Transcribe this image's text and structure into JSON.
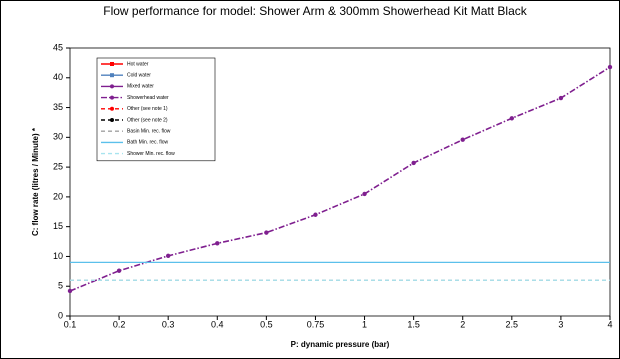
{
  "chart_data": {
    "type": "line",
    "title": "Flow performance for model: Shower Arm & 300mm Showerhead Kit Matt Black",
    "x_label": "P: dynamic pressure (bar)",
    "y_label": "C: flow rate (litres / Minute) *",
    "categories": [
      "0.1",
      "0.2",
      "0.3",
      "0.4",
      "0.5",
      "0.75",
      "1",
      "1.5",
      "2",
      "2.5",
      "3",
      "4"
    ],
    "ylim": [
      0,
      45
    ],
    "yticks": [
      0,
      5,
      10,
      15,
      20,
      25,
      30,
      35,
      40,
      45
    ],
    "grid": false,
    "legend": "top-left",
    "series": [
      {
        "name": "Hot water",
        "color": "#ff0000",
        "dash": "solid",
        "marker": "square",
        "values": [
          null,
          null,
          null,
          null,
          null,
          null,
          null,
          null,
          null,
          null,
          null,
          null
        ]
      },
      {
        "name": "Cold water",
        "color": "#4f81bd",
        "dash": "solid",
        "marker": "square",
        "values": [
          null,
          null,
          null,
          null,
          null,
          null,
          null,
          null,
          null,
          null,
          null,
          null
        ]
      },
      {
        "name": "Mixed water",
        "color": "#7f1f8f",
        "dash": "solid",
        "marker": "circle",
        "values": [
          null,
          null,
          null,
          null,
          null,
          null,
          null,
          null,
          null,
          null,
          null,
          null
        ]
      },
      {
        "name": "Showerhead water",
        "color": "#7f1f8f",
        "dash": "dashdot",
        "marker": "circle",
        "values": [
          4.2,
          7.6,
          10.1,
          12.2,
          14.0,
          17.0,
          20.5,
          25.7,
          29.6,
          33.2,
          36.6,
          41.8
        ]
      },
      {
        "name": "Other (see note 1)",
        "color": "#ff0000",
        "dash": "dashed",
        "marker": "circle",
        "values": [
          null,
          null,
          null,
          null,
          null,
          null,
          null,
          null,
          null,
          null,
          null,
          null
        ]
      },
      {
        "name": "Other (see note 2)",
        "color": "#000000",
        "dash": "dashed",
        "marker": "circle",
        "values": [
          null,
          null,
          null,
          null,
          null,
          null,
          null,
          null,
          null,
          null,
          null,
          null
        ]
      },
      {
        "name": "Basin Min. rec. flow",
        "color": "#a0a0a0",
        "dash": "dashed",
        "marker": "none",
        "values": [
          6,
          6,
          6,
          6,
          6,
          6,
          6,
          6,
          6,
          6,
          6,
          6
        ]
      },
      {
        "name": "Bath Min. rec. flow",
        "color": "#5bc0eb",
        "dash": "solid",
        "marker": "none",
        "values": [
          9,
          9,
          9,
          9,
          9,
          9,
          9,
          9,
          9,
          9,
          9,
          9
        ]
      },
      {
        "name": "Shower Min. rec. flow",
        "color": "#a8e4ef",
        "dash": "dashed",
        "marker": "none",
        "values": [
          6,
          6,
          6,
          6,
          6,
          6,
          6,
          6,
          6,
          6,
          6,
          6
        ]
      }
    ]
  }
}
